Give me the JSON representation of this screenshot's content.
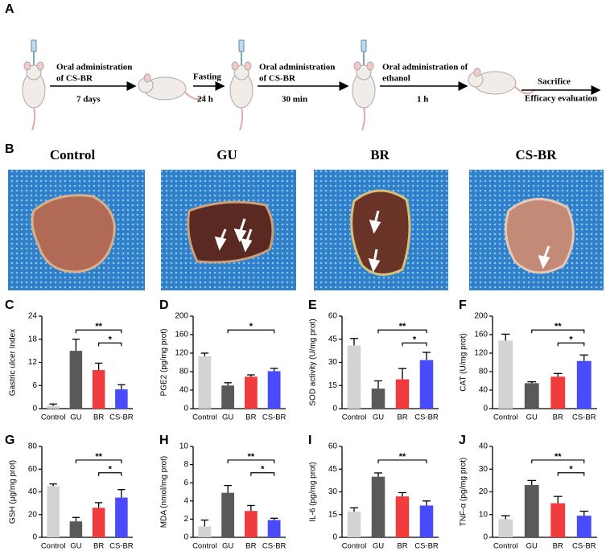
{
  "panel_a": {
    "label": "A",
    "steps": [
      {
        "above": [
          "Oral administration",
          "of CS-BR"
        ],
        "below": "7 days"
      },
      {
        "above": [
          "Fasting"
        ],
        "below": "24 h"
      },
      {
        "above": [
          "Oral administration",
          "of CS-BR"
        ],
        "below": "30 min"
      },
      {
        "above": [
          "Oral administration of",
          "ethanol"
        ],
        "below": "1 h"
      },
      {
        "above": [
          "Sacrifice"
        ],
        "below": "Efficacy evaluation"
      }
    ]
  },
  "panel_b": {
    "label": "B",
    "groups": [
      "Control",
      "GU",
      "BR",
      "CS-BR"
    ]
  },
  "chart_data": [
    {
      "type": "bar",
      "panel": "C",
      "ylabel": "Gastric ulcer Index",
      "categories": [
        "Control",
        "GU",
        "BR",
        "CS-BR"
      ],
      "values": [
        0.7,
        15,
        10,
        5
      ],
      "errors": [
        0.5,
        3,
        1.8,
        1.2
      ],
      "colors": [
        "#d3d3d3",
        "#595959",
        "#f03c3c",
        "#4a4aff"
      ],
      "ylim": [
        0,
        24
      ],
      "yticks": [
        0,
        6,
        12,
        18,
        24
      ],
      "significance": [
        {
          "text": "**",
          "between": [
            "GU",
            "CS-BR"
          ]
        },
        {
          "text": "*",
          "between": [
            "BR",
            "CS-BR"
          ]
        }
      ]
    },
    {
      "type": "bar",
      "panel": "D",
      "ylabel": "PGE2 (pg/mg prot)",
      "categories": [
        "Control",
        "GU",
        "BR",
        "CS-BR"
      ],
      "values": [
        113,
        50,
        69,
        81
      ],
      "errors": [
        7,
        6,
        4,
        6
      ],
      "colors": [
        "#d3d3d3",
        "#595959",
        "#f03c3c",
        "#4a4aff"
      ],
      "ylim": [
        0,
        200
      ],
      "yticks": [
        0,
        40,
        80,
        120,
        160,
        200
      ],
      "significance": [
        {
          "text": "*",
          "between": [
            "GU",
            "CS-BR"
          ]
        }
      ]
    },
    {
      "type": "bar",
      "panel": "E",
      "ylabel": "SOD activity (U/mg prot)",
      "categories": [
        "Control",
        "GU",
        "BR",
        "CS-BR"
      ],
      "values": [
        41,
        13,
        19,
        31.5
      ],
      "errors": [
        4.5,
        5,
        7,
        5
      ],
      "colors": [
        "#d3d3d3",
        "#595959",
        "#f03c3c",
        "#4a4aff"
      ],
      "ylim": [
        0,
        60
      ],
      "yticks": [
        0,
        15,
        30,
        45,
        60
      ],
      "significance": [
        {
          "text": "**",
          "between": [
            "GU",
            "CS-BR"
          ]
        },
        {
          "text": "*",
          "between": [
            "BR",
            "CS-BR"
          ]
        }
      ]
    },
    {
      "type": "bar",
      "panel": "F",
      "ylabel": "CAT (U/mg prot)",
      "categories": [
        "Control",
        "GU",
        "BR",
        "CS-BR"
      ],
      "values": [
        147,
        55,
        69,
        103
      ],
      "errors": [
        14,
        3,
        7,
        13
      ],
      "colors": [
        "#d3d3d3",
        "#595959",
        "#f03c3c",
        "#4a4aff"
      ],
      "ylim": [
        0,
        200
      ],
      "yticks": [
        0,
        40,
        80,
        120,
        160,
        200
      ],
      "significance": [
        {
          "text": "**",
          "between": [
            "GU",
            "CS-BR"
          ]
        },
        {
          "text": "*",
          "between": [
            "BR",
            "CS-BR"
          ]
        }
      ]
    },
    {
      "type": "bar",
      "panel": "G",
      "ylabel": "GSH (μg/mg prot)",
      "categories": [
        "Control",
        "GU",
        "BR",
        "CS-BR"
      ],
      "values": [
        45,
        14,
        26,
        35
      ],
      "errors": [
        2,
        3.5,
        4.5,
        7
      ],
      "colors": [
        "#d3d3d3",
        "#595959",
        "#f03c3c",
        "#4a4aff"
      ],
      "ylim": [
        0,
        80
      ],
      "yticks": [
        0,
        20,
        40,
        60,
        80
      ],
      "significance": [
        {
          "text": "**",
          "between": [
            "GU",
            "CS-BR"
          ]
        },
        {
          "text": "*",
          "between": [
            "BR",
            "CS-BR"
          ]
        }
      ]
    },
    {
      "type": "bar",
      "panel": "H",
      "ylabel": "MDA (nmol/mg prot)",
      "categories": [
        "Control",
        "GU",
        "BR",
        "CS-BR"
      ],
      "values": [
        1.2,
        4.9,
        2.9,
        1.9
      ],
      "errors": [
        0.7,
        0.8,
        0.6,
        0.2
      ],
      "colors": [
        "#d3d3d3",
        "#595959",
        "#f03c3c",
        "#4a4aff"
      ],
      "ylim": [
        0,
        10
      ],
      "yticks": [
        0,
        2,
        4,
        6,
        8,
        10
      ],
      "significance": [
        {
          "text": "**",
          "between": [
            "GU",
            "CS-BR"
          ]
        },
        {
          "text": "*",
          "between": [
            "BR",
            "CS-BR"
          ]
        }
      ]
    },
    {
      "type": "bar",
      "panel": "I",
      "ylabel": "IL-6 (pg/mg prot)",
      "categories": [
        "Control",
        "GU",
        "BR",
        "CS-BR"
      ],
      "values": [
        17,
        40,
        27,
        21
      ],
      "errors": [
        2.5,
        2.5,
        2.5,
        3
      ],
      "colors": [
        "#d3d3d3",
        "#595959",
        "#f03c3c",
        "#4a4aff"
      ],
      "ylim": [
        0,
        60
      ],
      "yticks": [
        0,
        15,
        30,
        45,
        60
      ],
      "significance": [
        {
          "text": "**",
          "between": [
            "GU",
            "CS-BR"
          ]
        }
      ]
    },
    {
      "type": "bar",
      "panel": "J",
      "ylabel": "TNF-α (pg/mg prot)",
      "categories": [
        "Control",
        "GU",
        "BR",
        "CS-BR"
      ],
      "values": [
        8,
        23,
        15,
        9.5
      ],
      "errors": [
        1.5,
        2,
        3,
        2
      ],
      "colors": [
        "#d3d3d3",
        "#595959",
        "#f03c3c",
        "#4a4aff"
      ],
      "ylim": [
        0,
        40
      ],
      "yticks": [
        0,
        10,
        20,
        30,
        40
      ],
      "significance": [
        {
          "text": "**",
          "between": [
            "GU",
            "CS-BR"
          ]
        },
        {
          "text": "*",
          "between": [
            "BR",
            "CS-BR"
          ]
        }
      ]
    }
  ]
}
